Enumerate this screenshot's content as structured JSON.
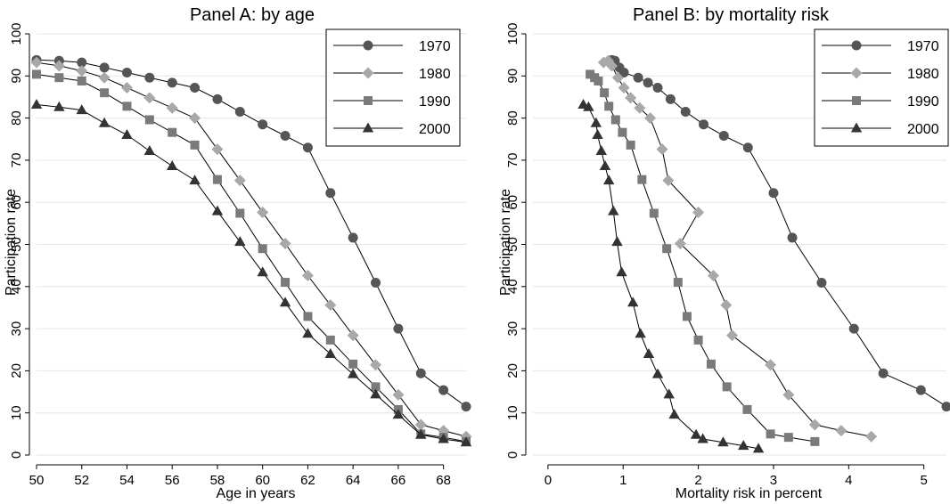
{
  "chart_data": [
    {
      "type": "line",
      "title": "Panel A: by age",
      "xlabel": "Age in years",
      "ylabel": "Participation rate",
      "xlim": [
        50,
        69
      ],
      "ylim": [
        0,
        100
      ],
      "xticks": [
        50,
        52,
        54,
        56,
        58,
        60,
        62,
        64,
        66,
        68
      ],
      "yticks": [
        0,
        10,
        20,
        30,
        40,
        50,
        60,
        70,
        80,
        90,
        100
      ],
      "grid": "horizontal",
      "legend_position": "top-right",
      "series": [
        {
          "name": "1970",
          "marker": "circle",
          "color": "#555555",
          "x": [
            50,
            51,
            52,
            53,
            54,
            55,
            56,
            57,
            58,
            59,
            60,
            61,
            62,
            63,
            64,
            65,
            66,
            67,
            68,
            69
          ],
          "y": [
            93.8,
            93.6,
            93.2,
            92.0,
            90.8,
            89.6,
            88.4,
            87.2,
            84.5,
            81.5,
            78.5,
            75.8,
            73.0,
            62.2,
            51.6,
            40.9,
            30.0,
            19.4,
            15.4,
            11.5
          ]
        },
        {
          "name": "1980",
          "marker": "diamond",
          "color": "#a8a8a8",
          "x": [
            50,
            51,
            52,
            53,
            54,
            55,
            56,
            57,
            58,
            59,
            60,
            61,
            62,
            63,
            64,
            65,
            66,
            67,
            68,
            69
          ],
          "y": [
            93.2,
            92.4,
            91.2,
            89.6,
            87.2,
            84.8,
            82.4,
            80.0,
            72.6,
            65.2,
            57.6,
            50.2,
            42.6,
            35.6,
            28.4,
            21.4,
            14.3,
            7.2,
            5.8,
            4.4
          ]
        },
        {
          "name": "1990",
          "marker": "square",
          "color": "#7a7a7a",
          "x": [
            50,
            51,
            52,
            53,
            54,
            55,
            56,
            57,
            58,
            59,
            60,
            61,
            62,
            63,
            64,
            65,
            66,
            67,
            68,
            69
          ],
          "y": [
            90.4,
            89.6,
            88.8,
            86.0,
            82.8,
            79.6,
            76.6,
            73.6,
            65.4,
            57.4,
            49.0,
            41.0,
            32.9,
            27.3,
            21.6,
            16.2,
            10.8,
            5.0,
            4.2,
            3.2
          ]
        },
        {
          "name": "2000",
          "marker": "triangle",
          "color": "#333333",
          "x": [
            50,
            51,
            52,
            53,
            54,
            55,
            56,
            57,
            58,
            59,
            60,
            61,
            62,
            63,
            64,
            65,
            66,
            67,
            68,
            69
          ],
          "y": [
            83.2,
            82.6,
            81.9,
            78.8,
            76.0,
            72.2,
            68.6,
            65.2,
            57.9,
            50.6,
            43.4,
            36.2,
            28.8,
            24.0,
            19.2,
            14.4,
            9.6,
            4.8,
            3.8,
            3.0
          ]
        }
      ]
    },
    {
      "type": "line",
      "title": "Panel B: by mortality risk",
      "xlabel": "Mortality risk in percent",
      "ylabel": "Participation rate",
      "xlim": [
        -0.2,
        5.3
      ],
      "ylim": [
        0,
        100
      ],
      "xticks": [
        0,
        1,
        2,
        3,
        4,
        5
      ],
      "yticks": [
        0,
        10,
        20,
        30,
        40,
        50,
        60,
        70,
        80,
        90,
        100
      ],
      "grid": "horizontal",
      "legend_position": "top-right",
      "series": [
        {
          "name": "1970",
          "marker": "circle",
          "color": "#555555",
          "x": [
            0.85,
            0.89,
            0.95,
            1.01,
            1.2,
            1.33,
            1.46,
            1.63,
            1.83,
            2.07,
            2.34,
            2.66,
            3.0,
            3.25,
            3.64,
            4.07,
            4.46,
            4.96,
            5.3
          ],
          "y": [
            93.8,
            93.6,
            92.0,
            90.8,
            89.6,
            88.4,
            87.2,
            84.5,
            81.5,
            78.5,
            75.8,
            73.0,
            62.2,
            51.6,
            40.9,
            30.0,
            19.4,
            15.4,
            11.5
          ]
        },
        {
          "name": "1980",
          "marker": "diamond",
          "color": "#a8a8a8",
          "x": [
            0.74,
            0.8,
            0.85,
            0.93,
            1.01,
            1.1,
            1.22,
            1.36,
            1.52,
            1.6,
            2.0,
            1.76,
            2.2,
            2.37,
            2.45,
            2.96,
            3.2,
            3.55,
            3.9,
            4.3
          ],
          "y": [
            93.2,
            93.6,
            92.4,
            89.6,
            87.2,
            84.8,
            82.4,
            80.0,
            72.6,
            65.2,
            57.6,
            50.2,
            42.6,
            35.6,
            28.4,
            21.4,
            14.3,
            7.2,
            5.8,
            4.4
          ]
        },
        {
          "name": "1990",
          "marker": "square",
          "color": "#7a7a7a",
          "x": [
            0.56,
            0.62,
            0.67,
            0.75,
            0.81,
            0.9,
            0.99,
            1.1,
            1.25,
            1.41,
            1.58,
            1.73,
            1.85,
            2.0,
            2.17,
            2.38,
            2.65,
            2.96,
            3.2,
            3.55
          ],
          "y": [
            90.4,
            89.6,
            88.8,
            86.0,
            82.8,
            79.6,
            76.6,
            73.6,
            65.4,
            57.4,
            49.0,
            41.0,
            32.9,
            27.3,
            21.6,
            16.2,
            10.8,
            5.0,
            4.2,
            3.2
          ]
        },
        {
          "name": "2000",
          "marker": "triangle",
          "color": "#333333",
          "x": [
            0.47,
            0.54,
            0.64,
            0.66,
            0.71,
            0.76,
            0.81,
            0.87,
            0.92,
            0.98,
            1.13,
            1.23,
            1.34,
            1.46,
            1.61,
            1.68,
            1.97,
            2.06,
            2.33,
            2.6,
            2.8
          ],
          "y": [
            83.2,
            82.6,
            78.8,
            76.0,
            72.2,
            68.6,
            65.2,
            57.9,
            50.6,
            43.4,
            36.2,
            28.8,
            24.0,
            19.2,
            14.4,
            9.6,
            4.8,
            3.8,
            3.0,
            2.2,
            1.5
          ]
        }
      ]
    }
  ]
}
